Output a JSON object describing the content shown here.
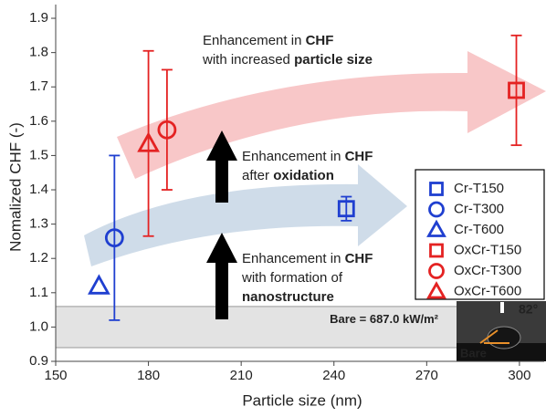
{
  "chart_data": {
    "type": "scatter",
    "x_label": "Particle size (nm)",
    "y_label": "Nomalized CHF (-)",
    "xlim": [
      150,
      308
    ],
    "xticks": [
      150,
      180,
      210,
      240,
      270,
      300
    ],
    "ylim": [
      0.9,
      1.94
    ],
    "yticks": [
      0.9,
      {
        "value": 1,
        "label": "1.0"
      },
      1.1,
      1.2,
      1.3,
      1.4,
      1.5,
      1.6,
      1.7,
      1.8,
      1.9
    ],
    "series": [
      {
        "name": "Cr-T150",
        "color": "#1f3fd0",
        "marker": "square",
        "x": [
          244
        ],
        "values": [
          1.345
        ],
        "errors": [
          0.035
        ]
      },
      {
        "name": "Cr-T300",
        "color": "#1f3fd0",
        "marker": "circle",
        "x": [
          169
        ],
        "values": [
          1.26
        ],
        "errors": [
          0.24
        ]
      },
      {
        "name": "Cr-T600",
        "color": "#1f3fd0",
        "marker": "triangle",
        "x": [
          164
        ],
        "values": [
          1.12
        ],
        "errors": [
          null
        ]
      },
      {
        "name": "OxCr-T150",
        "color": "#e42222",
        "marker": "square",
        "x": [
          299
        ],
        "values": [
          1.69
        ],
        "errors": [
          0.16
        ]
      },
      {
        "name": "OxCr-T300",
        "color": "#e42222",
        "marker": "circle",
        "x": [
          186
        ],
        "values": [
          1.575
        ],
        "errors": [
          0.175
        ]
      },
      {
        "name": "OxCr-T600",
        "color": "#e42222",
        "marker": "triangle",
        "x": [
          180
        ],
        "values": [
          1.535
        ],
        "errors": [
          0.27
        ]
      }
    ],
    "bare": {
      "label": "Bare = 687.0 kW/m²",
      "value": 1.0,
      "error": 0.06
    },
    "annotations": [
      [
        [
          {
            "text": "Enhancement in ",
            "bold": false
          },
          {
            "text": "CHF",
            "bold": true
          }
        ],
        [
          {
            "text": "with increased ",
            "bold": false
          },
          {
            "text": "particle size",
            "bold": true
          }
        ]
      ],
      [
        [
          {
            "text": "Enhancement in ",
            "bold": false
          },
          {
            "text": "CHF",
            "bold": true
          }
        ],
        [
          {
            "text": "after ",
            "bold": false
          },
          {
            "text": "oxidation",
            "bold": true
          }
        ]
      ],
      [
        [
          {
            "text": "Enhancement in ",
            "bold": false
          },
          {
            "text": "CHF",
            "bold": true
          }
        ],
        [
          {
            "text": "with formation of",
            "bold": false
          }
        ],
        [
          {
            "text": "nanostructure",
            "bold": true
          }
        ]
      ]
    ],
    "inset": {
      "angle": "82°",
      "label": "Bare"
    }
  }
}
